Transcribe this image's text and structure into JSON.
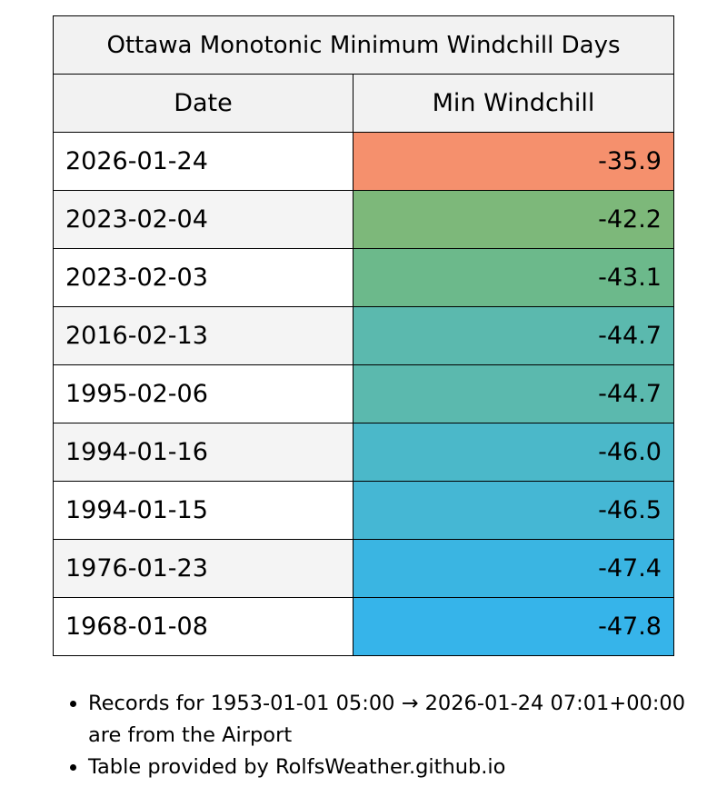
{
  "table": {
    "title": "Ottawa Monotonic Minimum Windchill Days",
    "columns": [
      "Date",
      "Min Windchill"
    ],
    "rows": [
      {
        "date": "2026-01-24",
        "value": "-35.9",
        "color": "#f5906d"
      },
      {
        "date": "2023-02-04",
        "value": "-42.2",
        "color": "#7db87a"
      },
      {
        "date": "2023-02-03",
        "value": "-43.1",
        "color": "#6cb98b"
      },
      {
        "date": "2016-02-13",
        "value": "-44.7",
        "color": "#5bb9ae"
      },
      {
        "date": "1995-02-06",
        "value": "-44.7",
        "color": "#5bb9ae"
      },
      {
        "date": "1994-01-16",
        "value": "-46.0",
        "color": "#4bb8c9"
      },
      {
        "date": "1994-01-15",
        "value": "-46.5",
        "color": "#45b7d4"
      },
      {
        "date": "1976-01-23",
        "value": "-47.4",
        "color": "#3ab5e2"
      },
      {
        "date": "1968-01-08",
        "value": "-47.8",
        "color": "#36b4ea"
      }
    ]
  },
  "notes": [
    "Records for 1953-01-01 05:00 → 2026-01-24 07:01+00:00 are from the Airport",
    "Table provided by RolfsWeather.github.io"
  ]
}
